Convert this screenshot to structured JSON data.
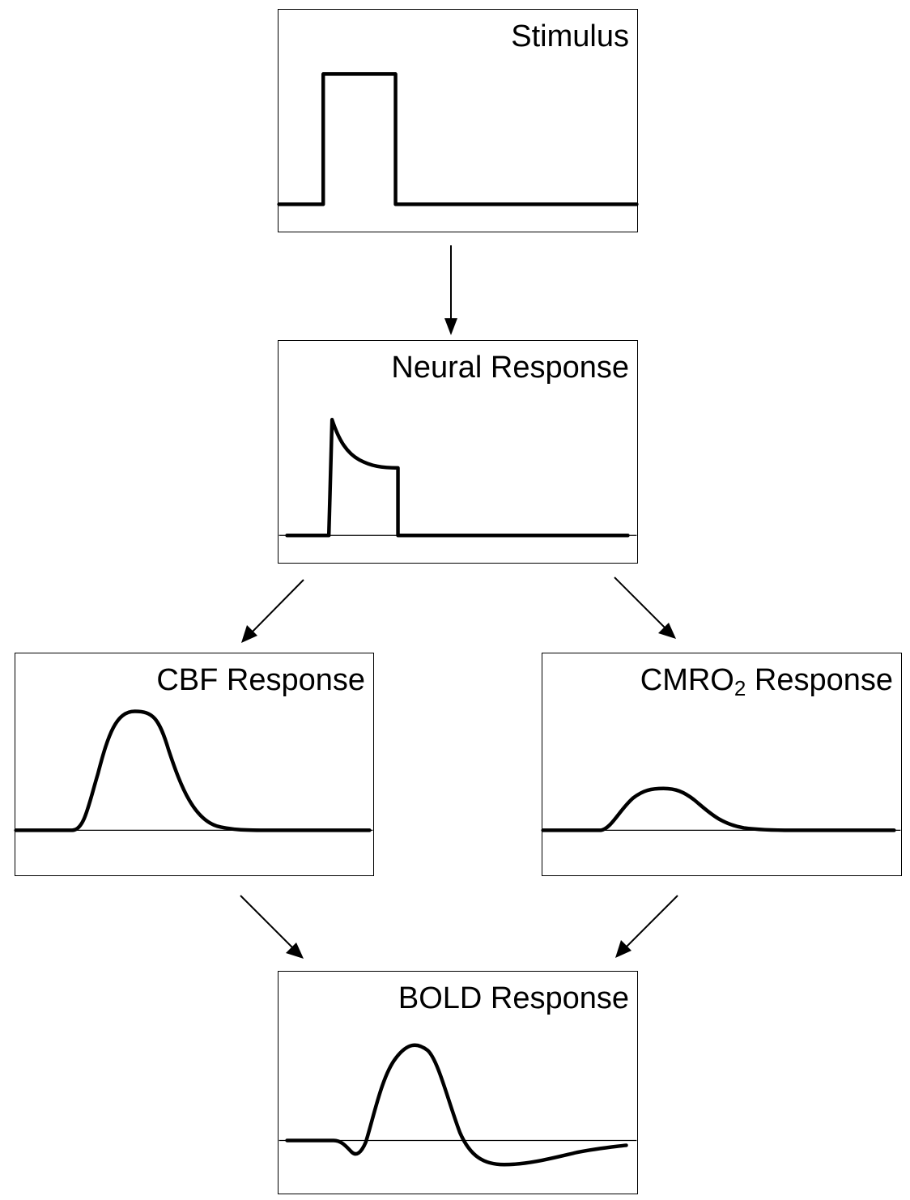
{
  "panels": {
    "stimulus": {
      "title": "Stimulus"
    },
    "neural": {
      "title": "Neural Response"
    },
    "cbf": {
      "title": "CBF Response"
    },
    "cmro2": {
      "title_main": "CMRO",
      "title_sub": "2",
      "title_rest": " Response"
    },
    "bold": {
      "title": "BOLD Response"
    }
  },
  "colors": {
    "line": "#000000",
    "background": "#ffffff"
  }
}
